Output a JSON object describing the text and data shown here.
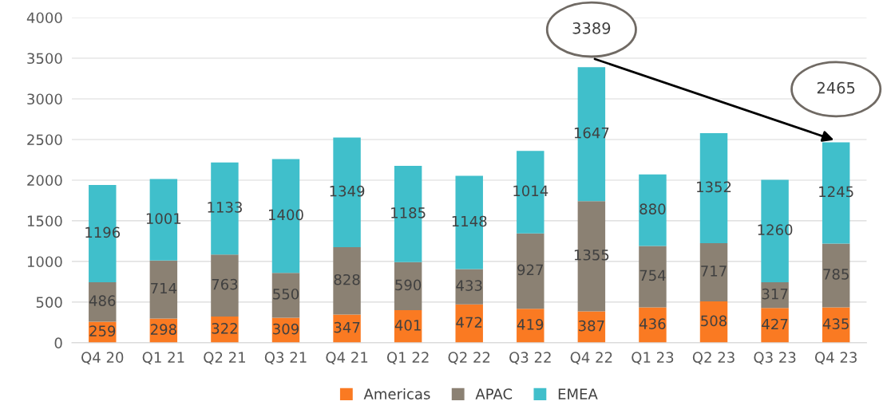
{
  "chart_data": {
    "type": "bar",
    "stacked": true,
    "categories": [
      "Q4 20",
      "Q1 21",
      "Q2 21",
      "Q3 21",
      "Q4 21",
      "Q1 22",
      "Q2 22",
      "Q3 22",
      "Q4 22",
      "Q1 23",
      "Q2 23",
      "Q3 23",
      "Q4 23"
    ],
    "series": [
      {
        "name": "Americas",
        "color": "#fa7a22",
        "values": [
          259,
          298,
          322,
          309,
          347,
          401,
          472,
          419,
          387,
          436,
          508,
          427,
          435
        ]
      },
      {
        "name": "APAC",
        "color": "#8b8173",
        "values": [
          486,
          714,
          763,
          550,
          828,
          590,
          433,
          927,
          1355,
          754,
          717,
          317,
          785
        ]
      },
      {
        "name": "EMEA",
        "color": "#40bfcb",
        "values": [
          1196,
          1001,
          1133,
          1400,
          1349,
          1185,
          1148,
          1014,
          1647,
          880,
          1352,
          1260,
          1245
        ]
      }
    ],
    "ylim": [
      0,
      4000
    ],
    "yticks": [
      0,
      500,
      1000,
      1500,
      2000,
      2500,
      3000,
      3500,
      4000
    ],
    "grid": "y",
    "legend": "bottom",
    "data_labels": true,
    "totals": [
      null,
      null,
      null,
      null,
      null,
      null,
      null,
      null,
      "3389",
      null,
      null,
      null,
      "2465"
    ]
  }
}
